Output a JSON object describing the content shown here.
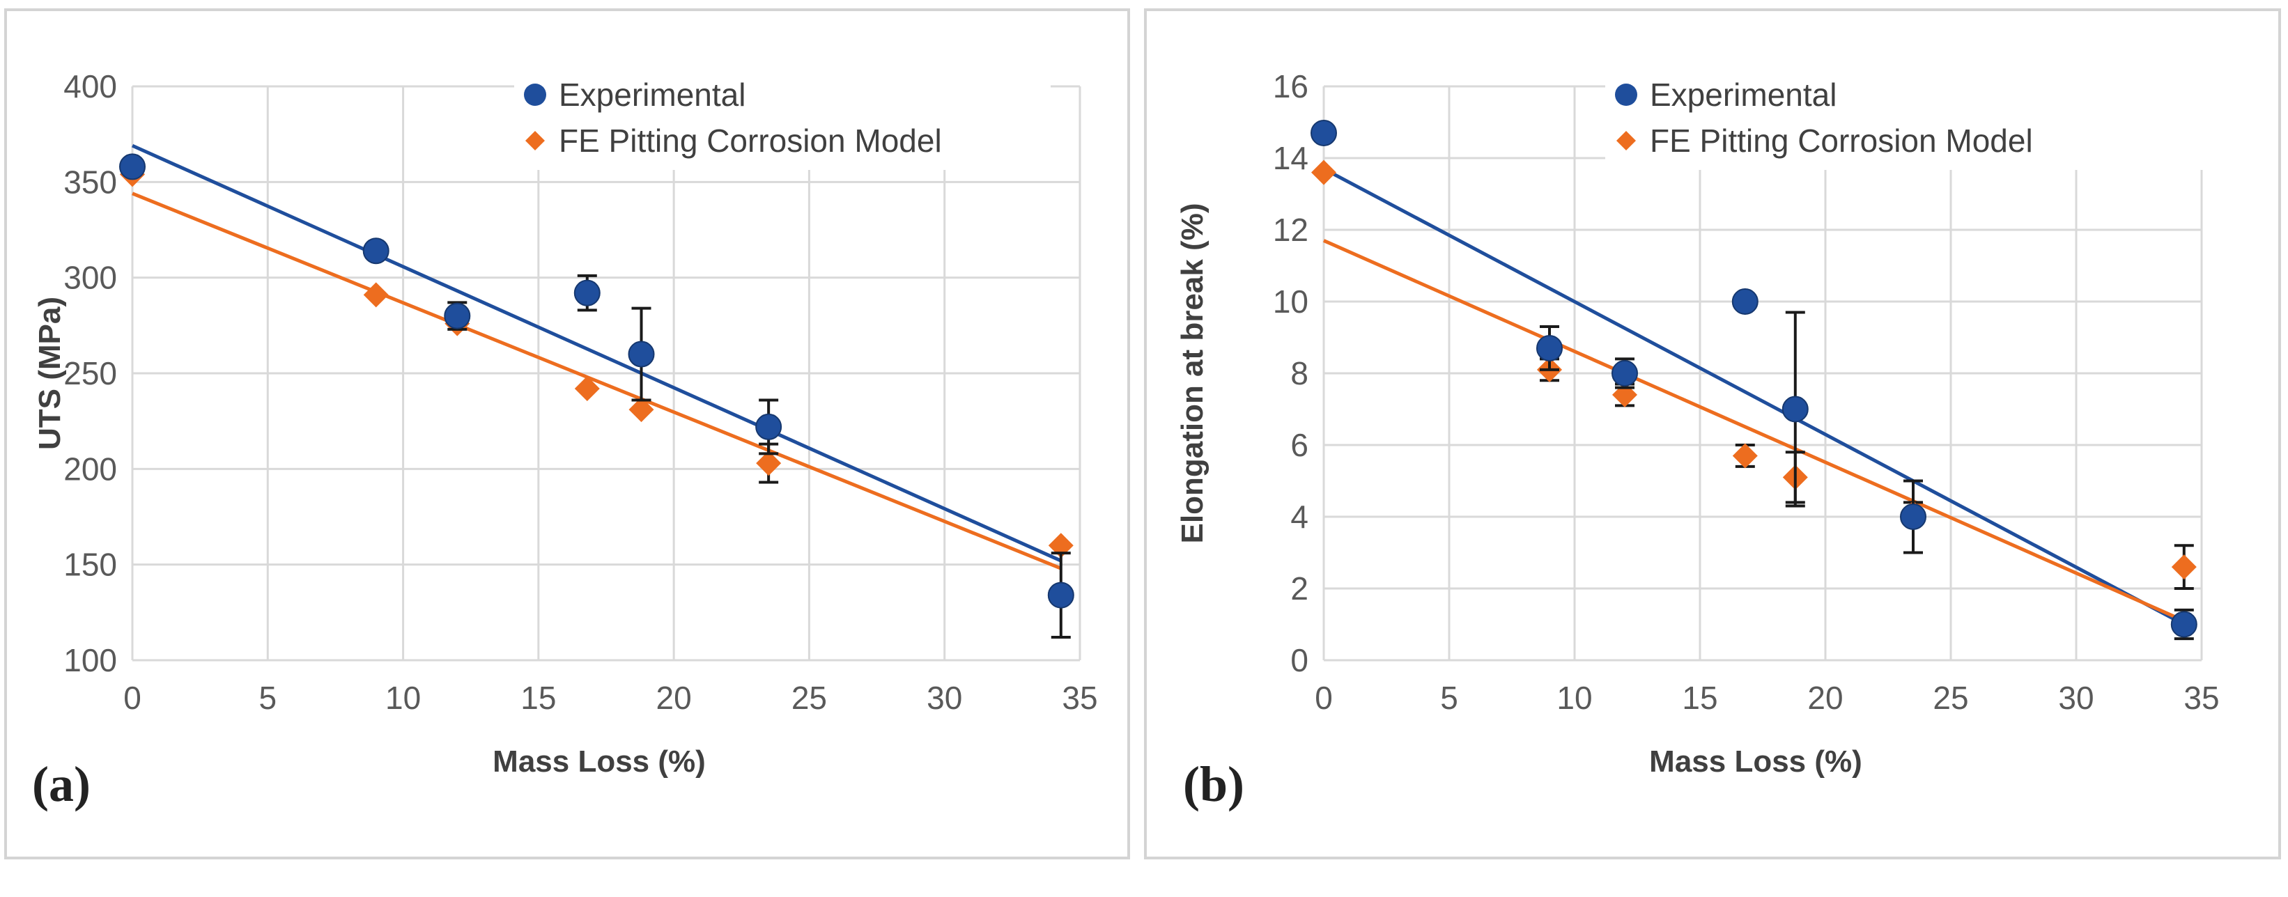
{
  "colors": {
    "experimental": "#1f4e9c",
    "model": "#ed6d1f",
    "grid": "#d9d9d9",
    "error_bar": "#1a1a1a"
  },
  "chart_data": [
    {
      "panel_label": "(a)",
      "type": "scatter",
      "xlabel": "Mass Loss (%)",
      "ylabel": "UTS (MPa)",
      "xlim": [
        0,
        35
      ],
      "ylim": [
        100,
        400
      ],
      "xticks": [
        0,
        5,
        10,
        15,
        20,
        25,
        30,
        35
      ],
      "yticks": [
        100,
        150,
        200,
        250,
        300,
        350,
        400
      ],
      "grid": true,
      "legend": "top-right",
      "series": [
        {
          "name": "Experimental",
          "marker": "circle",
          "color": "#1f4e9c",
          "points": [
            {
              "x": 0,
              "y": 358,
              "err": 0
            },
            {
              "x": 9,
              "y": 314,
              "err": 0
            },
            {
              "x": 12,
              "y": 280,
              "err": 7
            },
            {
              "x": 16.8,
              "y": 292,
              "err": 9
            },
            {
              "x": 18.8,
              "y": 260,
              "err": 24
            },
            {
              "x": 23.5,
              "y": 222,
              "err": 14
            },
            {
              "x": 34.3,
              "y": 134,
              "err": 22
            }
          ],
          "trendline": {
            "x": [
              0,
              34.3
            ],
            "y": [
              369,
              152
            ]
          }
        },
        {
          "name": "FE Pitting Corrosion Model",
          "marker": "diamond",
          "color": "#ed6d1f",
          "points": [
            {
              "x": 0,
              "y": 354,
              "err": 0
            },
            {
              "x": 9,
              "y": 291,
              "err": 0
            },
            {
              "x": 12,
              "y": 276,
              "err": 0
            },
            {
              "x": 16.8,
              "y": 242,
              "err": 0
            },
            {
              "x": 18.8,
              "y": 231,
              "err": 0
            },
            {
              "x": 23.5,
              "y": 203,
              "err": 10
            },
            {
              "x": 34.3,
              "y": 160,
              "err": 0
            }
          ],
          "trendline": {
            "x": [
              0,
              34.3
            ],
            "y": [
              344,
              148
            ]
          }
        }
      ]
    },
    {
      "panel_label": "(b)",
      "type": "scatter",
      "xlabel": "Mass Loss (%)",
      "ylabel": "Elongation at break (%)",
      "xlim": [
        0,
        35
      ],
      "ylim": [
        0,
        16
      ],
      "xticks": [
        0,
        5,
        10,
        15,
        20,
        25,
        30,
        35
      ],
      "yticks": [
        0,
        2,
        4,
        6,
        8,
        10,
        12,
        14,
        16
      ],
      "grid": true,
      "legend": "top-right",
      "series": [
        {
          "name": "Experimental",
          "marker": "circle",
          "color": "#1f4e9c",
          "points": [
            {
              "x": 0,
              "y": 14.7,
              "err": 0
            },
            {
              "x": 9,
              "y": 8.7,
              "err": 0.6
            },
            {
              "x": 12,
              "y": 8.0,
              "err": 0.4
            },
            {
              "x": 16.8,
              "y": 10.0,
              "err": 0
            },
            {
              "x": 18.8,
              "y": 7.0,
              "err": 2.7
            },
            {
              "x": 23.5,
              "y": 4.0,
              "err": 1.0
            },
            {
              "x": 34.3,
              "y": 1.0,
              "err": 0.4
            }
          ],
          "trendline": {
            "x": [
              0,
              34.3
            ],
            "y": [
              13.7,
              1.0
            ]
          }
        },
        {
          "name": "FE Pitting Corrosion Model",
          "marker": "diamond",
          "color": "#ed6d1f",
          "points": [
            {
              "x": 0,
              "y": 13.6,
              "err": 0
            },
            {
              "x": 9,
              "y": 8.1,
              "err": 0.3
            },
            {
              "x": 12,
              "y": 7.4,
              "err": 0.3
            },
            {
              "x": 16.8,
              "y": 5.7,
              "err": 0.3
            },
            {
              "x": 18.8,
              "y": 5.1,
              "err": 0.7
            },
            {
              "x": 23.5,
              "y": 4.1,
              "err": 0.3
            },
            {
              "x": 34.3,
              "y": 2.6,
              "err": 0.6
            }
          ],
          "trendline": {
            "x": [
              0,
              34.3
            ],
            "y": [
              11.7,
              1.1
            ]
          }
        }
      ]
    }
  ]
}
